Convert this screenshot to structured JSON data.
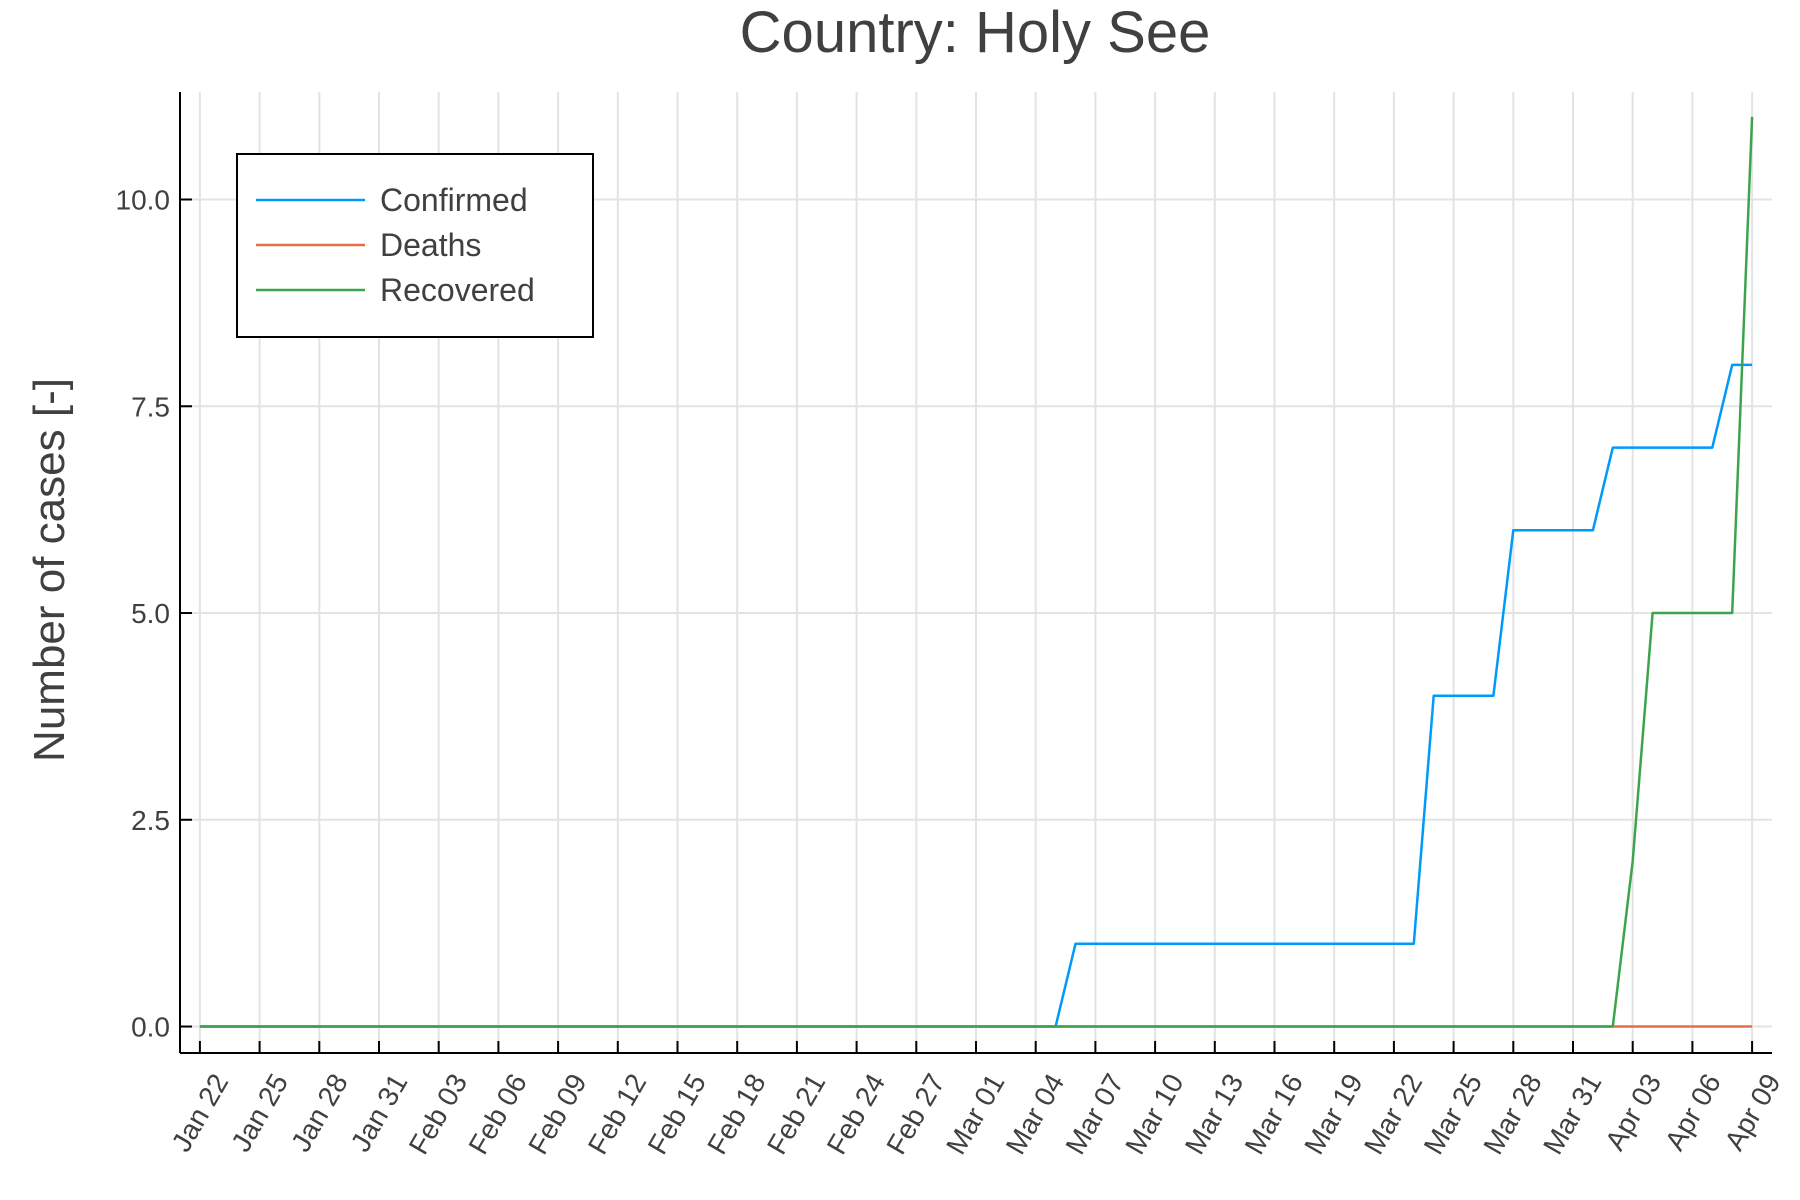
{
  "chart_data": {
    "type": "line",
    "title": "Country: Holy See",
    "xlabel": "",
    "ylabel": "Number of cases [-]",
    "ylim": [
      -0.32,
      11.3
    ],
    "yticks": [
      0.0,
      2.5,
      5.0,
      7.5,
      10.0
    ],
    "ytick_labels": [
      "0.0",
      "2.5",
      "5.0",
      "7.5",
      "10.0"
    ],
    "xrange": [
      "2020-01-21",
      "2020-04-10"
    ],
    "xtick_dates": [
      "2020-01-22",
      "2020-01-25",
      "2020-01-28",
      "2020-01-31",
      "2020-02-03",
      "2020-02-06",
      "2020-02-09",
      "2020-02-12",
      "2020-02-15",
      "2020-02-18",
      "2020-02-21",
      "2020-02-24",
      "2020-02-27",
      "2020-03-01",
      "2020-03-04",
      "2020-03-07",
      "2020-03-10",
      "2020-03-13",
      "2020-03-16",
      "2020-03-19",
      "2020-03-22",
      "2020-03-25",
      "2020-03-28",
      "2020-03-31",
      "2020-04-03",
      "2020-04-06",
      "2020-04-09"
    ],
    "xtick_labels": [
      "Jan 22",
      "Jan 25",
      "Jan 28",
      "Jan 31",
      "Feb 03",
      "Feb 06",
      "Feb 09",
      "Feb 12",
      "Feb 15",
      "Feb 18",
      "Feb 21",
      "Feb 24",
      "Feb 27",
      "Mar 01",
      "Mar 04",
      "Mar 07",
      "Mar 10",
      "Mar 13",
      "Mar 16",
      "Mar 19",
      "Mar 22",
      "Mar 25",
      "Mar 28",
      "Mar 31",
      "Apr 03",
      "Apr 06",
      "Apr 09"
    ],
    "grid": true,
    "legend_position": "top-left",
    "series": [
      {
        "name": "Confirmed",
        "color": "#009af9",
        "points": [
          [
            "2020-01-22",
            0
          ],
          [
            "2020-03-05",
            0
          ],
          [
            "2020-03-06",
            1
          ],
          [
            "2020-03-23",
            1
          ],
          [
            "2020-03-24",
            4
          ],
          [
            "2020-03-27",
            4
          ],
          [
            "2020-03-28",
            6
          ],
          [
            "2020-04-01",
            6
          ],
          [
            "2020-04-02",
            7
          ],
          [
            "2020-04-07",
            7
          ],
          [
            "2020-04-08",
            8
          ],
          [
            "2020-04-09",
            8
          ]
        ]
      },
      {
        "name": "Deaths",
        "color": "#e26f46",
        "points": [
          [
            "2020-01-22",
            0
          ],
          [
            "2020-04-09",
            0
          ]
        ]
      },
      {
        "name": "Recovered",
        "color": "#3da44d",
        "points": [
          [
            "2020-01-22",
            0
          ],
          [
            "2020-04-02",
            0
          ],
          [
            "2020-04-03",
            2
          ],
          [
            "2020-04-04",
            5
          ],
          [
            "2020-04-08",
            5
          ],
          [
            "2020-04-09",
            11
          ]
        ]
      }
    ]
  }
}
